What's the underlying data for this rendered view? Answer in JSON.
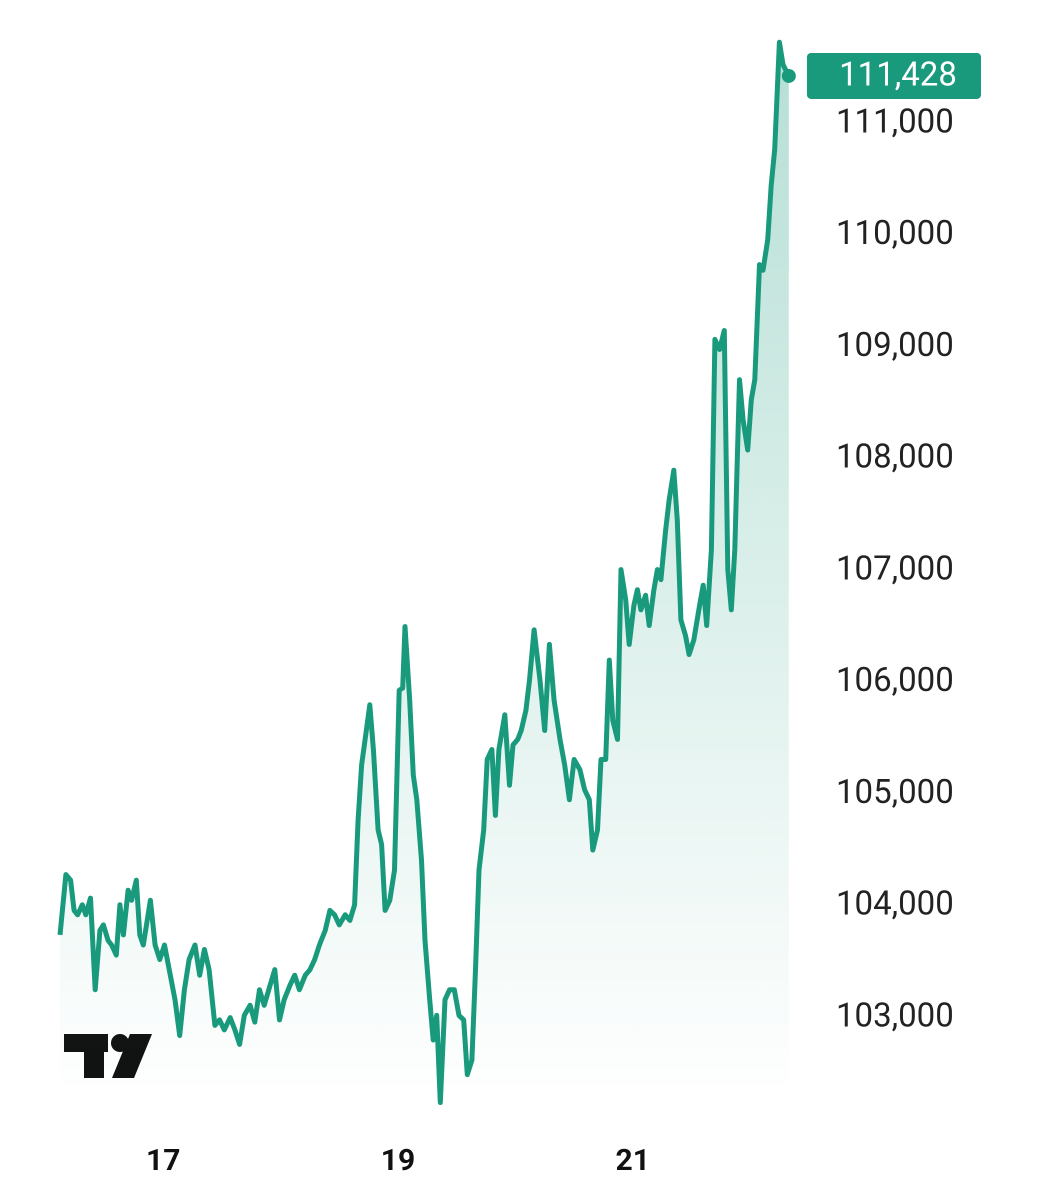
{
  "chart_data": {
    "type": "area",
    "color": "#1a9a7c",
    "price_label": "111,428",
    "x": [
      16.12,
      16.17,
      16.21,
      16.24,
      16.27,
      16.31,
      16.34,
      16.38,
      16.42,
      16.46,
      16.49,
      16.53,
      16.56,
      16.6,
      16.63,
      16.66,
      16.7,
      16.73,
      16.77,
      16.8,
      16.83,
      16.89,
      16.93,
      16.97,
      17.01,
      17.06,
      17.1,
      17.14,
      17.18,
      17.22,
      17.27,
      17.31,
      17.35,
      17.39,
      17.44,
      17.48,
      17.52,
      17.57,
      17.61,
      17.65,
      17.69,
      17.74,
      17.78,
      17.82,
      17.86,
      17.91,
      17.95,
      17.99,
      18.03,
      18.08,
      18.12,
      18.16,
      18.21,
      18.25,
      18.29,
      18.33,
      18.38,
      18.42,
      18.46,
      18.5,
      18.55,
      18.59,
      18.63,
      18.66,
      18.69,
      18.72,
      18.76,
      18.79,
      18.83,
      18.86,
      18.89,
      18.93,
      18.97,
      19.01,
      19.04,
      19.06,
      19.1,
      19.13,
      19.16,
      19.2,
      19.23,
      19.27,
      19.3,
      19.33,
      19.36,
      19.4,
      19.44,
      19.48,
      19.52,
      19.56,
      19.59,
      19.63,
      19.66,
      19.69,
      19.73,
      19.76,
      19.8,
      19.83,
      19.86,
      19.91,
      19.95,
      19.98,
      20.02,
      20.05,
      20.09,
      20.12,
      20.16,
      20.21,
      20.25,
      20.29,
      20.33,
      20.38,
      20.42,
      20.46,
      20.5,
      20.55,
      20.59,
      20.63,
      20.66,
      20.7,
      20.73,
      20.77,
      20.8,
      20.83,
      20.87,
      20.9,
      20.94,
      20.97,
      21.01,
      21.04,
      21.07,
      21.11,
      21.14,
      21.18,
      21.21,
      21.24,
      21.28,
      21.31,
      21.35,
      21.38,
      21.41,
      21.45,
      21.48,
      21.52,
      21.57,
      21.6,
      21.63,
      21.67,
      21.7,
      21.74,
      21.78,
      21.81,
      21.84,
      21.87,
      21.91,
      21.94,
      21.98,
      22.01,
      22.04,
      22.08,
      22.11,
      22.15,
      22.18,
      22.21,
      22.25,
      22.28,
      22.33
    ],
    "values": [
      103740,
      104280,
      104230,
      103960,
      103920,
      104010,
      103920,
      104070,
      103250,
      103780,
      103830,
      103690,
      103650,
      103560,
      104010,
      103740,
      104140,
      104050,
      104230,
      103740,
      103650,
      104050,
      103650,
      103520,
      103650,
      103380,
      103160,
      102840,
      103250,
      103520,
      103650,
      103380,
      103610,
      103430,
      102930,
      102980,
      102890,
      103000,
      102890,
      102760,
      103020,
      103110,
      102960,
      103250,
      103110,
      103290,
      103430,
      102980,
      103160,
      103290,
      103380,
      103250,
      103380,
      103430,
      103520,
      103650,
      103780,
      103960,
      103920,
      103830,
      103920,
      103870,
      104010,
      104770,
      105260,
      105490,
      105800,
      105400,
      104680,
      104550,
      103960,
      104050,
      104320,
      105930,
      105950,
      106500,
      105840,
      105170,
      104950,
      104410,
      103690,
      103160,
      102800,
      103020,
      102240,
      103160,
      103250,
      103250,
      103020,
      102980,
      102490,
      102620,
      103430,
      104320,
      104680,
      105310,
      105400,
      104810,
      105400,
      105710,
      105080,
      105440,
      105490,
      105570,
      105750,
      106020,
      106470,
      106020,
      105570,
      106340,
      105840,
      105490,
      105260,
      104950,
      105310,
      105220,
      105040,
      104950,
      104500,
      104680,
      105310,
      105310,
      106200,
      105660,
      105490,
      107010,
      106740,
      106340,
      106690,
      106830,
      106650,
      106780,
      106510,
      106830,
      107010,
      106920,
      107360,
      107630,
      107900,
      107450,
      106560,
      106420,
      106250,
      106380,
      106690,
      106870,
      106510,
      107190,
      109070,
      108980,
      109150,
      107010,
      106650,
      107190,
      108710,
      108350,
      108080,
      108530,
      108710,
      109740,
      109690,
      109960,
      110450,
      110770,
      111730,
      111530,
      111428
    ],
    "xlim": [
      16.12,
      22.34
    ],
    "xticks": [
      17,
      19,
      21
    ],
    "ylim": [
      102200,
      111750
    ],
    "yticks": [
      {
        "value": 103000,
        "label": "103,000"
      },
      {
        "value": 104000,
        "label": "104,000"
      },
      {
        "value": 105000,
        "label": "105,000"
      },
      {
        "value": 106000,
        "label": "106,000"
      },
      {
        "value": 107000,
        "label": "107,000"
      },
      {
        "value": 108000,
        "label": "108,000"
      },
      {
        "value": 109000,
        "label": "109,000"
      },
      {
        "value": 110000,
        "label": "110,000"
      },
      {
        "value": 111000,
        "label": "111,000"
      }
    ]
  }
}
